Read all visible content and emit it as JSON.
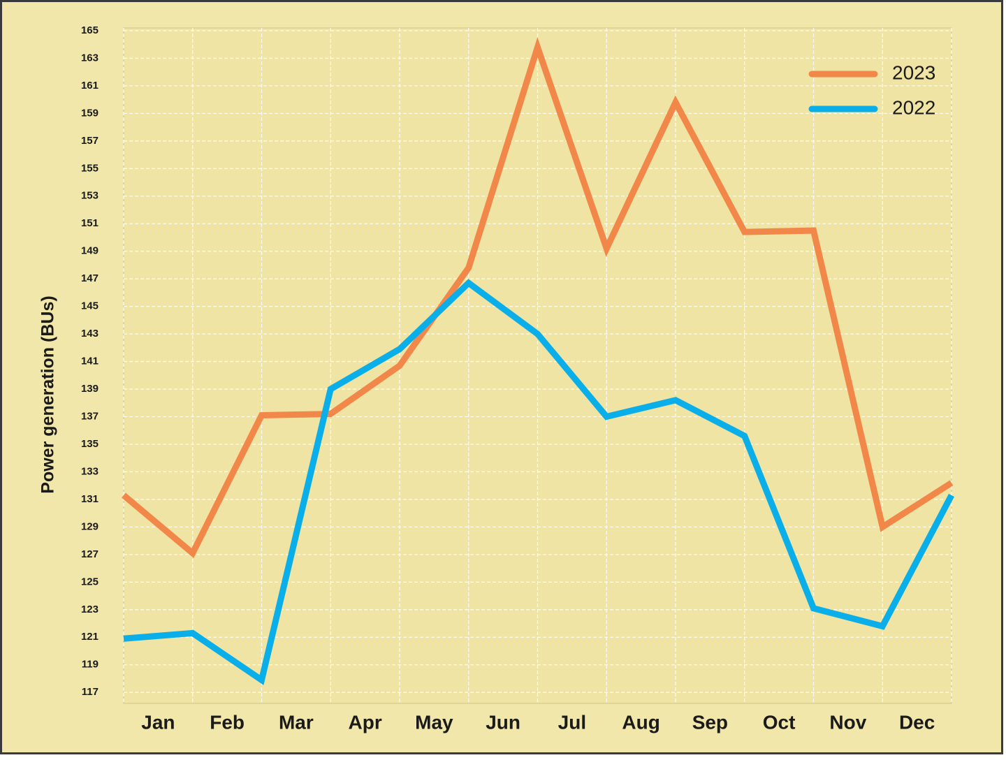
{
  "chart_data": {
    "type": "line",
    "y_label": "Power generation (BUs)",
    "x": [
      0,
      1,
      2,
      3,
      4,
      5,
      6,
      7,
      8,
      9,
      10,
      11,
      12
    ],
    "xlim": [
      0,
      12
    ],
    "xticks": [
      {
        "value": 0.5,
        "label": "Jan"
      },
      {
        "value": 1.5,
        "label": "Feb"
      },
      {
        "value": 2.5,
        "label": "Mar"
      },
      {
        "value": 3.5,
        "label": "Apr"
      },
      {
        "value": 4.5,
        "label": "May"
      },
      {
        "value": 5.5,
        "label": "Jun"
      },
      {
        "value": 6.5,
        "label": "Jul"
      },
      {
        "value": 7.5,
        "label": "Aug"
      },
      {
        "value": 8.5,
        "label": "Sep"
      },
      {
        "value": 9.5,
        "label": "Oct"
      },
      {
        "value": 10.5,
        "label": "Nov"
      },
      {
        "value": 11.5,
        "label": "Dec"
      }
    ],
    "ylim": [
      116.2,
      165.2
    ],
    "yticks": [
      117,
      119,
      121,
      123,
      125,
      127,
      129,
      131,
      133,
      135,
      137,
      139,
      141,
      143,
      145,
      147,
      149,
      151,
      153,
      155,
      157,
      159,
      161,
      163,
      165
    ],
    "grid": true,
    "legend": "upper right",
    "series": [
      {
        "name": "2023",
        "color": "#f2874a",
        "values": [
          131.3,
          127.1,
          137.1,
          137.2,
          140.7,
          147.8,
          163.8,
          149.2,
          159.8,
          150.4,
          150.5,
          129.0,
          132.2
        ]
      },
      {
        "name": "2022",
        "color": "#0aaee8",
        "values": [
          120.9,
          121.3,
          117.9,
          139.0,
          141.9,
          146.7,
          143.0,
          137.0,
          138.2,
          135.6,
          123.1,
          121.8,
          131.3
        ]
      }
    ]
  }
}
